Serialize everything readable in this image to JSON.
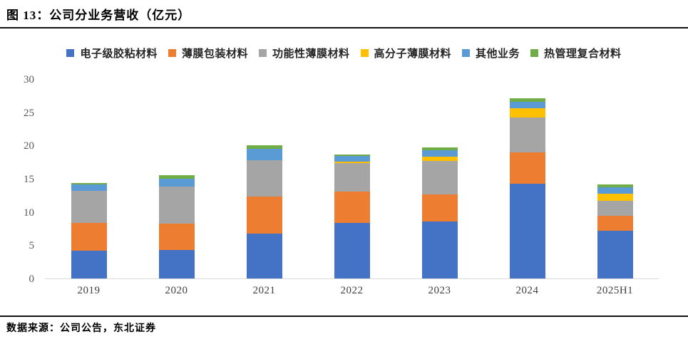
{
  "title": "图 13：公司分业务营收（亿元）",
  "source": "数据来源：公司公告，东北证券",
  "chart_data": {
    "type": "bar",
    "stacked": true,
    "title": "公司分业务营收（亿元）",
    "xlabel": "",
    "ylabel": "",
    "ylim": [
      0,
      30
    ],
    "yticks": [
      0,
      5,
      10,
      15,
      20,
      25,
      30
    ],
    "grid": false,
    "legend_position": "top",
    "categories": [
      "2019",
      "2020",
      "2021",
      "2022",
      "2023",
      "2024",
      "2025H1"
    ],
    "series": [
      {
        "name": "电子级胶粘材料",
        "color": "#4472C4",
        "values": [
          4.2,
          4.3,
          6.7,
          8.4,
          8.6,
          14.2,
          7.2
        ]
      },
      {
        "name": "薄膜包装材料",
        "color": "#ED7D31",
        "values": [
          4.2,
          3.9,
          5.6,
          4.7,
          4.0,
          4.8,
          2.2
        ]
      },
      {
        "name": "功能性薄膜材料",
        "color": "#A5A5A5",
        "values": [
          4.8,
          5.6,
          5.5,
          4.3,
          5.1,
          5.2,
          2.3
        ]
      },
      {
        "name": "高分子薄膜材料",
        "color": "#FFC000",
        "values": [
          0,
          0,
          0,
          0.2,
          0.6,
          1.4,
          1.1
        ]
      },
      {
        "name": "其他业务",
        "color": "#5B9BD5",
        "values": [
          0.9,
          1.2,
          1.7,
          0.8,
          1.0,
          1.0,
          0.9
        ]
      },
      {
        "name": "热管理复合材料",
        "color": "#70AD47",
        "values": [
          0.3,
          0.5,
          0.5,
          0.3,
          0.4,
          0.5,
          0.4
        ]
      }
    ]
  }
}
